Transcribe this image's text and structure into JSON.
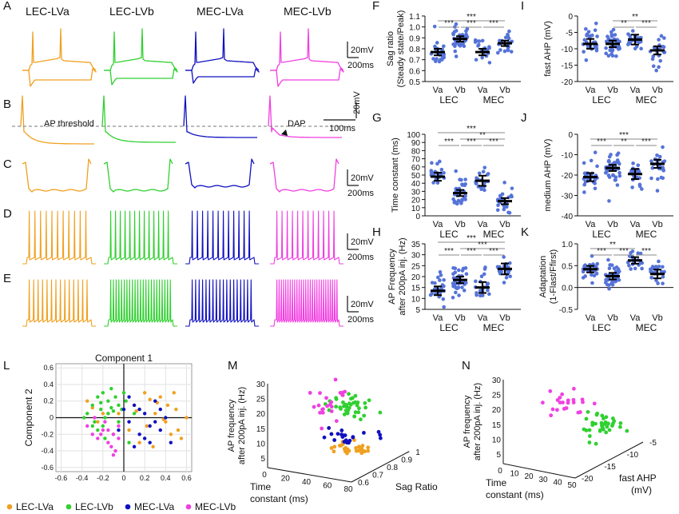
{
  "colors": {
    "lva": "#f0a020",
    "lvb": "#30d030",
    "mva": "#1010c0",
    "mvb": "#f040e0",
    "dots": "#5573d8"
  },
  "panel_letters": [
    "A",
    "B",
    "C",
    "D",
    "E",
    "F",
    "G",
    "H",
    "I",
    "J",
    "K",
    "L",
    "M",
    "N"
  ],
  "traces": {
    "column_titles": [
      "LEC-LVa",
      "LEC-LVb",
      "MEC-LVa",
      "MEC-LVb"
    ],
    "scale_mv": "20mV",
    "scale_ms_200": "200ms",
    "scale_ms_100": "100ms",
    "ap_threshold": "AP threshold",
    "dap": "DAP"
  },
  "chart_data": [
    {
      "panel": "F",
      "type": "scatter",
      "ylabel": "Sag ratio (Steady state/Peak)",
      "ylim": [
        0.5,
        1.1
      ],
      "yticks": [
        "0.5",
        "0.6",
        "0.7",
        "0.8",
        "0.9",
        "1.0",
        "1.1"
      ],
      "yticknums": [
        0.5,
        0.6,
        0.7,
        0.8,
        0.9,
        1.0,
        1.1
      ],
      "categories": [
        "Va",
        "Vb",
        "Va",
        "Vb"
      ],
      "groups": [
        "LEC",
        "MEC"
      ],
      "means": [
        0.77,
        0.89,
        0.77,
        0.85
      ],
      "sem": [
        0.012,
        0.01,
        0.012,
        0.01
      ],
      "sig": [
        {
          "a": 0,
          "b": 1,
          "label": "***"
        },
        {
          "a": 2,
          "b": 3,
          "label": "***"
        },
        {
          "a": 1,
          "b": 2,
          "label": "***"
        },
        {
          "a": 0,
          "b": 3,
          "label": "***"
        }
      ]
    },
    {
      "panel": "G",
      "type": "scatter",
      "ylabel": "Time constant (ms)",
      "ylim": [
        0,
        100
      ],
      "yticks": [
        "0",
        "10",
        "20",
        "30",
        "40",
        "50",
        "60",
        "70",
        "80",
        "90",
        "100"
      ],
      "yticknums": [
        0,
        10,
        20,
        30,
        40,
        50,
        60,
        70,
        80,
        90,
        100
      ],
      "categories": [
        "Va",
        "Vb",
        "Va",
        "Vb"
      ],
      "groups": [
        "LEC",
        "MEC"
      ],
      "means": [
        48,
        28,
        43,
        18
      ],
      "sem": [
        2,
        1.5,
        2.5,
        1.5
      ],
      "sig": [
        {
          "a": 0,
          "b": 1,
          "label": "***"
        },
        {
          "a": 1,
          "b": 2,
          "label": "***"
        },
        {
          "a": 2,
          "b": 3,
          "label": "***"
        },
        {
          "a": 1,
          "b": 3,
          "label": "**"
        },
        {
          "a": 0,
          "b": 3,
          "label": "***"
        }
      ]
    },
    {
      "panel": "H",
      "type": "scatter",
      "ylabel": "AP Frequency after 200pA inj. (Hz)",
      "ylim": [
        5,
        35
      ],
      "yticks": [
        "5",
        "10",
        "15",
        "20",
        "25",
        "30",
        "35"
      ],
      "yticknums": [
        5,
        10,
        15,
        20,
        25,
        30,
        35
      ],
      "categories": [
        "Va",
        "Vb",
        "Va",
        "Vb"
      ],
      "groups": [
        "LEC",
        "MEC"
      ],
      "means": [
        13.5,
        18.5,
        15,
        23.5
      ],
      "sem": [
        0.8,
        0.6,
        1,
        1
      ],
      "sig": [
        {
          "a": 0,
          "b": 1,
          "label": "***"
        },
        {
          "a": 1,
          "b": 2,
          "label": "***"
        },
        {
          "a": 2,
          "b": 3,
          "label": "***"
        },
        {
          "a": 1,
          "b": 3,
          "label": "***"
        },
        {
          "a": 0,
          "b": 3,
          "label": "***"
        }
      ]
    },
    {
      "panel": "I",
      "type": "scatter",
      "ylabel": "fast AHP (mV)",
      "ylim": [
        -20,
        0
      ],
      "yticks": [
        "0",
        "-5",
        "-10",
        "-15",
        "-20"
      ],
      "yticknums": [
        0,
        -5,
        -10,
        -15,
        -20
      ],
      "categories": [
        "Va",
        "Vb",
        "Va",
        "Vb"
      ],
      "groups": [
        "LEC",
        "MEC"
      ],
      "means": [
        -8.5,
        -8.5,
        -7.2,
        -10.5
      ],
      "sem": [
        0.6,
        0.4,
        0.6,
        0.5
      ],
      "sig": [
        {
          "a": 1,
          "b": 2,
          "label": "**"
        },
        {
          "a": 2,
          "b": 3,
          "label": "***"
        },
        {
          "a": 1,
          "b": 3,
          "label": "**"
        }
      ]
    },
    {
      "panel": "J",
      "type": "scatter",
      "ylabel": "medium AHP (mV)",
      "ylim": [
        -40,
        0
      ],
      "yticks": [
        "0",
        "-10",
        "-20",
        "-30",
        "-40"
      ],
      "yticknums": [
        0,
        -10,
        -20,
        -30,
        -40
      ],
      "categories": [
        "Va",
        "Vb",
        "Va",
        "Vb"
      ],
      "groups": [
        "LEC",
        "MEC"
      ],
      "means": [
        -21,
        -16.5,
        -19.5,
        -14.5
      ],
      "sem": [
        0.8,
        0.6,
        1,
        0.8
      ],
      "sig": [
        {
          "a": 0,
          "b": 1,
          "label": "***"
        },
        {
          "a": 1,
          "b": 2,
          "label": "**"
        },
        {
          "a": 2,
          "b": 3,
          "label": "***"
        },
        {
          "a": 0,
          "b": 3,
          "label": "***"
        }
      ]
    },
    {
      "panel": "K",
      "type": "scatter",
      "ylabel": "Adaptation (1-Flast/Ffirst)",
      "ylim": [
        -0.5,
        1.0
      ],
      "yticks": [
        "-0.5",
        "0.0",
        "0.5",
        "1.0"
      ],
      "yticknums": [
        -0.5,
        0,
        0.5,
        1.0
      ],
      "categories": [
        "Va",
        "Vb",
        "Va",
        "Vb"
      ],
      "groups": [
        "LEC",
        "MEC"
      ],
      "means": [
        0.42,
        0.26,
        0.62,
        0.31
      ],
      "sem": [
        0.03,
        0.03,
        0.03,
        0.04
      ],
      "sig": [
        {
          "a": 0,
          "b": 1,
          "label": "***"
        },
        {
          "a": 1,
          "b": 2,
          "label": "***"
        },
        {
          "a": 2,
          "b": 3,
          "label": "***"
        },
        {
          "a": 0,
          "b": 2,
          "label": "**"
        }
      ]
    },
    {
      "panel": "L",
      "type": "scatter",
      "xlabel": "Component 1",
      "ylabel": "Component 2",
      "xlim": [
        -0.65,
        0.65
      ],
      "ylim": [
        -0.65,
        0.65
      ],
      "xticks": [
        "-0.6",
        "-0.4",
        "-0.2",
        "0",
        "0.2",
        "0.4",
        "0.6"
      ],
      "xticknums": [
        -0.6,
        -0.4,
        -0.2,
        0,
        0.2,
        0.4,
        0.6
      ],
      "yticks": [
        "0.6",
        "0.4",
        "0.2",
        "0",
        "-0.2",
        "-0.4",
        "-0.6"
      ],
      "yticknums": [
        0.6,
        0.4,
        0.2,
        0,
        -0.2,
        -0.4,
        -0.6
      ],
      "series": [
        {
          "name": "LEC-LVa",
          "group": "lva",
          "x": [
            -0.35,
            -0.3,
            -0.25,
            -0.2,
            0.05,
            0.1,
            0.15,
            0.2,
            0.22,
            0.25,
            0.3,
            0.35,
            0.4,
            0.42,
            0.45,
            0.5,
            0.55,
            0.6,
            0.28,
            0.32,
            0.38,
            0.48,
            0.52,
            -0.05,
            0.12
          ],
          "y": [
            0.2,
            0.12,
            -0.05,
            0.05,
            -0.15,
            0.15,
            -0.3,
            0.3,
            -0.1,
            0.22,
            0.05,
            0.25,
            -0.05,
            0.15,
            -0.2,
            0.1,
            -0.25,
            0.0,
            -0.35,
            0.18,
            -0.02,
            0.3,
            -0.15,
            0.05,
            0.08
          ]
        },
        {
          "name": "LEC-LVb",
          "group": "lvb",
          "x": [
            -0.35,
            -0.3,
            -0.28,
            -0.25,
            -0.22,
            -0.2,
            -0.18,
            -0.15,
            -0.12,
            -0.1,
            -0.08,
            -0.05,
            -0.02,
            0.0,
            -0.25,
            -0.2,
            -0.15,
            -0.1,
            -0.3,
            -0.22,
            -0.18,
            -0.12,
            -0.05,
            0.02,
            -0.38,
            0.05,
            0.1
          ],
          "y": [
            0.05,
            0.15,
            -0.05,
            0.25,
            0.1,
            0.3,
            0.0,
            0.2,
            0.35,
            0.08,
            0.25,
            0.15,
            0.1,
            0.3,
            -0.15,
            -0.1,
            0.05,
            -0.2,
            -0.1,
            0.18,
            -0.25,
            0.12,
            -0.05,
            0.2,
            0.0,
            -0.3,
            0.05
          ]
        },
        {
          "name": "MEC-LVa",
          "group": "mva",
          "x": [
            0.0,
            0.05,
            0.1,
            0.15,
            0.2,
            0.25,
            0.3,
            0.35,
            0.4,
            0.45,
            0.1,
            0.2,
            0.3,
            0.05,
            -0.05,
            0.15,
            0.35,
            0.25
          ],
          "y": [
            0.1,
            -0.05,
            0.15,
            -0.2,
            0.05,
            -0.1,
            0.2,
            -0.15,
            0.0,
            -0.3,
            -0.35,
            -0.25,
            -0.05,
            0.25,
            -0.15,
            0.1,
            0.1,
            -0.3
          ]
        },
        {
          "name": "MEC-LVb",
          "group": "mvb",
          "x": [
            -0.35,
            -0.3,
            -0.25,
            -0.2,
            -0.15,
            -0.1,
            -0.05,
            -0.28,
            -0.18,
            -0.12,
            -0.08,
            -0.22,
            -0.15,
            -0.05,
            -0.1
          ],
          "y": [
            -0.1,
            -0.2,
            -0.25,
            -0.15,
            -0.3,
            -0.2,
            -0.1,
            0.0,
            -0.05,
            -0.35,
            -0.4,
            -0.2,
            -0.15,
            -0.25,
            -0.45
          ]
        }
      ]
    },
    {
      "panel": "M",
      "type": "scatter",
      "xlabel": "Time constant (ms)",
      "ylabel": "AP frequency after 200pA inj. (Hz)",
      "zlabel": "Sag Ratio",
      "xticks": [
        "0",
        "20",
        "40",
        "60",
        "80"
      ],
      "yticks": [
        "5",
        "10",
        "15",
        "20",
        "25",
        "30"
      ],
      "zticks": [
        "0.6",
        "0.7",
        "0.8",
        "0.9",
        "1"
      ],
      "groups": [
        "lva",
        "lvb",
        "mva",
        "mvb"
      ]
    },
    {
      "panel": "N",
      "type": "scatter",
      "xlabel": "Time constant (ms)",
      "ylabel": "AP frequency after 200pA inj. (Hz)",
      "zlabel": "fast AHP (mV)",
      "xticks": [
        "0",
        "10",
        "20",
        "30",
        "40",
        "50"
      ],
      "yticks": [
        "5",
        "10",
        "15",
        "20",
        "25",
        "30"
      ],
      "zticks": [
        "-20",
        "-15",
        "-10",
        "-5"
      ],
      "groups": [
        "lvb",
        "mvb"
      ]
    }
  ],
  "legend": [
    {
      "name": "LEC-LVa",
      "group": "lva"
    },
    {
      "name": "LEC-LVb",
      "group": "lvb"
    },
    {
      "name": "MEC-LVa",
      "group": "mva"
    },
    {
      "name": "MEC-LVb",
      "group": "mvb"
    }
  ]
}
